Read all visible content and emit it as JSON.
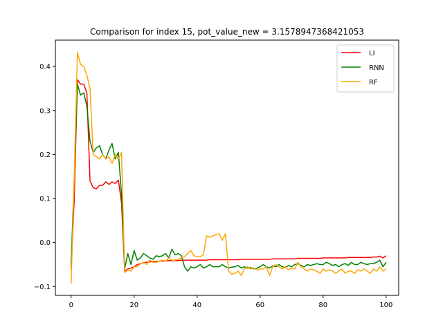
{
  "chart_data": {
    "type": "line",
    "title": "Comparison for index 15, pot_value_new = 3.1578947368421053",
    "xlabel": "",
    "ylabel": "",
    "xlim": [
      -5,
      104
    ],
    "ylim": [
      -0.12,
      0.46
    ],
    "xticks": [
      0,
      20,
      40,
      60,
      80,
      100
    ],
    "yticks": [
      -0.1,
      0.0,
      0.1,
      0.2,
      0.3,
      0.4
    ],
    "ytick_labels": [
      "−0.1",
      "0.0",
      "0.1",
      "0.2",
      "0.3",
      "0.4"
    ],
    "legend_position": "top-right",
    "grid": false,
    "series": [
      {
        "name": "LI",
        "color": "#ff0000",
        "values": [
          -0.06,
          0.1,
          0.37,
          0.36,
          0.36,
          0.34,
          0.14,
          0.125,
          0.122,
          0.13,
          0.13,
          0.138,
          0.132,
          0.138,
          0.134,
          0.142,
          0.09,
          -0.065,
          -0.06,
          -0.058,
          -0.055,
          -0.05,
          -0.048,
          -0.046,
          -0.045,
          -0.044,
          -0.043,
          -0.043,
          -0.042,
          -0.042,
          -0.042,
          -0.041,
          -0.041,
          -0.041,
          -0.041,
          -0.04,
          -0.04,
          -0.04,
          -0.04,
          -0.04,
          -0.04,
          -0.04,
          -0.04,
          -0.04,
          -0.039,
          -0.039,
          -0.039,
          -0.039,
          -0.039,
          -0.039,
          -0.039,
          -0.039,
          -0.039,
          -0.039,
          -0.038,
          -0.038,
          -0.038,
          -0.038,
          -0.038,
          -0.038,
          -0.038,
          -0.038,
          -0.038,
          -0.038,
          -0.037,
          -0.037,
          -0.037,
          -0.037,
          -0.037,
          -0.037,
          -0.037,
          -0.037,
          -0.036,
          -0.036,
          -0.036,
          -0.036,
          -0.036,
          -0.036,
          -0.036,
          -0.036,
          -0.035,
          -0.035,
          -0.035,
          -0.035,
          -0.035,
          -0.035,
          -0.035,
          -0.035,
          -0.034,
          -0.034,
          -0.034,
          -0.034,
          -0.034,
          -0.034,
          -0.034,
          -0.034,
          -0.033,
          -0.033,
          -0.031,
          -0.035,
          -0.03
        ]
      },
      {
        "name": "RNN",
        "color": "#008000",
        "values": [
          -0.05,
          0.15,
          0.36,
          0.335,
          0.34,
          0.31,
          0.23,
          0.205,
          0.215,
          0.22,
          0.2,
          0.19,
          0.21,
          0.225,
          0.19,
          0.205,
          0.11,
          -0.06,
          -0.025,
          -0.05,
          -0.018,
          -0.04,
          -0.035,
          -0.025,
          -0.03,
          -0.035,
          -0.038,
          -0.03,
          -0.032,
          -0.03,
          -0.025,
          -0.035,
          -0.015,
          -0.028,
          -0.025,
          -0.03,
          -0.055,
          -0.065,
          -0.055,
          -0.058,
          -0.055,
          -0.05,
          -0.058,
          -0.055,
          -0.05,
          -0.055,
          -0.055,
          -0.055,
          -0.05,
          -0.055,
          -0.058,
          -0.056,
          -0.055,
          -0.052,
          -0.058,
          -0.055,
          -0.058,
          -0.057,
          -0.06,
          -0.058,
          -0.055,
          -0.05,
          -0.055,
          -0.058,
          -0.053,
          -0.055,
          -0.05,
          -0.055,
          -0.057,
          -0.052,
          -0.055,
          -0.05,
          -0.048,
          -0.052,
          -0.055,
          -0.05,
          -0.052,
          -0.05,
          -0.048,
          -0.05,
          -0.05,
          -0.045,
          -0.048,
          -0.052,
          -0.05,
          -0.055,
          -0.05,
          -0.048,
          -0.052,
          -0.045,
          -0.05,
          -0.05,
          -0.045,
          -0.048,
          -0.05,
          -0.048,
          -0.048,
          -0.045,
          -0.04,
          -0.055,
          -0.045
        ]
      },
      {
        "name": "RF",
        "color": "#ffa500",
        "values": [
          -0.093,
          0.15,
          0.432,
          0.405,
          0.4,
          0.38,
          0.35,
          0.2,
          0.195,
          0.19,
          0.2,
          0.19,
          0.195,
          0.18,
          0.2,
          0.19,
          0.205,
          -0.068,
          -0.062,
          -0.065,
          -0.055,
          -0.055,
          -0.048,
          -0.045,
          -0.05,
          -0.04,
          -0.045,
          -0.045,
          -0.042,
          -0.04,
          -0.042,
          -0.035,
          -0.04,
          -0.04,
          -0.038,
          -0.035,
          -0.032,
          -0.025,
          -0.018,
          -0.03,
          -0.032,
          -0.032,
          -0.028,
          0.015,
          0.012,
          0.015,
          0.018,
          0.02,
          0.005,
          0.02,
          -0.065,
          -0.072,
          -0.07,
          -0.065,
          -0.075,
          -0.06,
          -0.055,
          -0.06,
          -0.058,
          -0.062,
          -0.06,
          -0.06,
          -0.055,
          -0.075,
          -0.055,
          -0.05,
          -0.055,
          -0.06,
          -0.055,
          -0.062,
          -0.058,
          -0.06,
          -0.045,
          -0.055,
          -0.06,
          -0.065,
          -0.06,
          -0.062,
          -0.065,
          -0.07,
          -0.06,
          -0.065,
          -0.062,
          -0.065,
          -0.07,
          -0.065,
          -0.06,
          -0.07,
          -0.065,
          -0.065,
          -0.07,
          -0.062,
          -0.065,
          -0.06,
          -0.065,
          -0.07,
          -0.06,
          -0.065,
          -0.055,
          -0.065,
          -0.06
        ]
      }
    ]
  }
}
